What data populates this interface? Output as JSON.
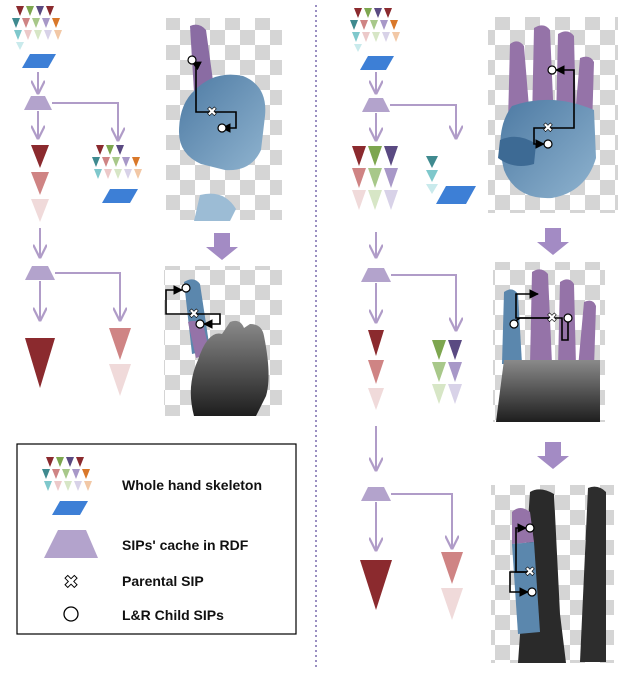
{
  "legend": {
    "items": [
      {
        "symbol": "hand-skeleton-icon",
        "label": "Whole hand skeleton"
      },
      {
        "symbol": "trapezoid-icon",
        "label": "SIPs' cache in RDF"
      },
      {
        "symbol": "cross-icon",
        "label": "Parental SIP"
      },
      {
        "symbol": "circle-icon",
        "label": "L&R Child SIPs"
      }
    ]
  },
  "colors": {
    "cache": "#b3a3cc",
    "arrow": "#b09cc8",
    "step_arrow": "#a38bc4",
    "palm_blue": "#5b87ad",
    "finger_purple": "#9573a8",
    "dark_red": "#8b2a2e",
    "mid_red": "#cf8484",
    "light_red": "#f0dada",
    "divider": "#9a8fc2"
  }
}
